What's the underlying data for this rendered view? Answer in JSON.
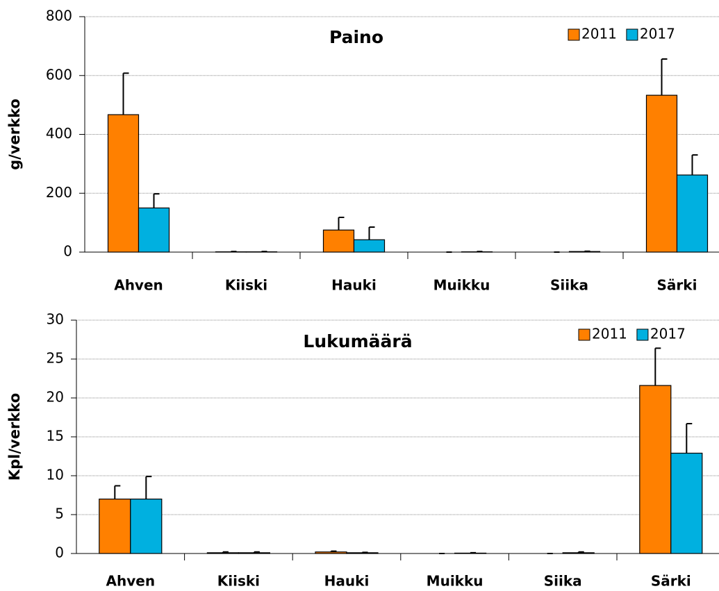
{
  "chart_data": [
    {
      "type": "bar",
      "title": "Paino",
      "y_label": "g/verkko",
      "categories": [
        "Ahven",
        "Kiiski",
        "Hauki",
        "Muikku",
        "Siika",
        "Särki"
      ],
      "series": [
        {
          "name": "2011",
          "color": "#ff8000",
          "values": [
            467,
            1,
            75,
            0,
            0,
            533
          ],
          "errors": [
            141,
            1,
            43,
            0,
            0,
            123
          ]
        },
        {
          "name": "2017",
          "color": "#00b0e0",
          "values": [
            150,
            1,
            42,
            1,
            2,
            262
          ],
          "errors": [
            48,
            1,
            43,
            1,
            1,
            68
          ]
        }
      ],
      "ylim": [
        0,
        800
      ],
      "yticks": [
        0,
        200,
        400,
        600,
        800
      ],
      "grid": true,
      "legend": "top-right"
    },
    {
      "type": "bar",
      "title": "Lukumäärä",
      "y_label": "Kpl/verkko",
      "categories": [
        "Ahven",
        "Kiiski",
        "Hauki",
        "Muikku",
        "Siika",
        "Särki"
      ],
      "series": [
        {
          "name": "2011",
          "color": "#ff8000",
          "values": [
            7.0,
            0.1,
            0.2,
            0,
            0,
            21.6
          ],
          "errors": [
            1.7,
            0.1,
            0.1,
            0,
            0,
            4.8
          ]
        },
        {
          "name": "2017",
          "color": "#00b0e0",
          "values": [
            7.0,
            0.1,
            0.1,
            0.05,
            0.1,
            12.9
          ],
          "errors": [
            2.9,
            0.1,
            0.05,
            0.05,
            0.1,
            3.8
          ]
        }
      ],
      "ylim": [
        0,
        30
      ],
      "yticks": [
        0,
        5,
        10,
        15,
        20,
        25,
        30
      ],
      "grid": true,
      "legend": "top-right"
    }
  ]
}
